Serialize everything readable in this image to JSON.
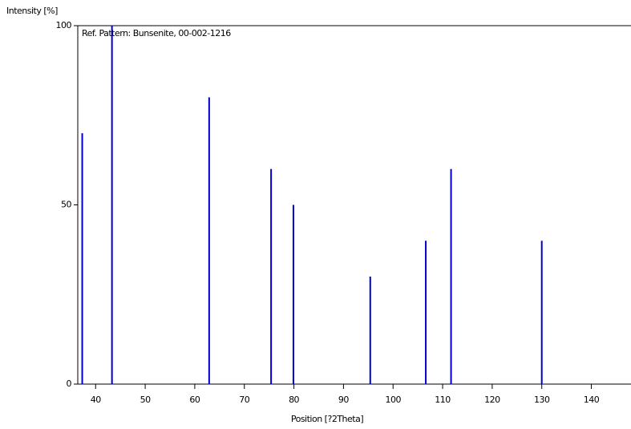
{
  "chart_data": {
    "type": "stick",
    "y_label": "Intensity [%]",
    "annotation": "Ref. Pattern: Bunsenite, 00-002-1216",
    "x_label": "Position [?2Theta]",
    "x": [
      37.3,
      43.3,
      62.9,
      75.4,
      79.9,
      95.4,
      106.6,
      111.7,
      130.0
    ],
    "values": [
      70,
      100,
      80,
      60,
      50,
      30,
      40,
      60,
      40
    ],
    "color": "#0000cc",
    "xlim": [
      36.4,
      148
    ],
    "xticks": [
      40,
      50,
      60,
      70,
      80,
      90,
      100,
      110,
      120,
      130,
      140
    ],
    "ylim": [
      0,
      100
    ],
    "yticks": [
      0,
      50,
      100
    ]
  }
}
